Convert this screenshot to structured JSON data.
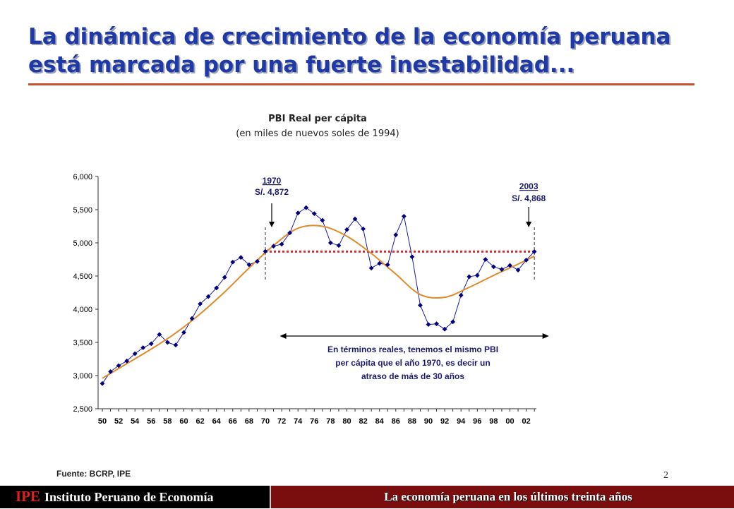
{
  "slide": {
    "title_line1": "La dinámica de crecimiento de la economía peruana",
    "title_line2": "está marcada por una fuerte inestabilidad...",
    "source": "Fuente: BCRP, IPE",
    "page_number": "2"
  },
  "footer": {
    "logo_mark": "IPE",
    "logo_name": "Instituto Peruano de Economía",
    "tagline": "La economía peruana en los últimos treinta años"
  },
  "chart_data": {
    "type": "line",
    "title": "PBI Real per cápita",
    "subtitle": "(en miles de nuevos soles de 1994)",
    "xlabel": "",
    "ylabel": "",
    "ylim": [
      2500,
      6000
    ],
    "yticks": [
      2500,
      3000,
      3500,
      4000,
      4500,
      5000,
      5500,
      6000
    ],
    "ytick_labels": [
      "2,500",
      "3,000",
      "3,500",
      "4,000",
      "4,500",
      "5,000",
      "5,500",
      "6,000"
    ],
    "xlim": [
      1950,
      2003
    ],
    "xticks": [
      1950,
      1952,
      1954,
      1956,
      1958,
      1960,
      1962,
      1964,
      1966,
      1968,
      1970,
      1972,
      1974,
      1976,
      1978,
      1980,
      1982,
      1984,
      1986,
      1988,
      1990,
      1992,
      1994,
      1996,
      1998,
      2000,
      2002
    ],
    "xtick_labels": [
      "50",
      "52",
      "54",
      "56",
      "58",
      "60",
      "62",
      "64",
      "66",
      "68",
      "70",
      "72",
      "74",
      "76",
      "78",
      "80",
      "82",
      "84",
      "86",
      "88",
      "90",
      "92",
      "94",
      "96",
      "98",
      "00",
      "02"
    ],
    "grid": false,
    "legend": "none",
    "colors": {
      "actual_line": "#1a1aa6",
      "marker": "#000080",
      "trend_line": "#e08a2a",
      "reference_line": "#d03030",
      "annotation": "#1a1a70"
    },
    "series": [
      {
        "x": [
          1950,
          1951,
          1952,
          1953,
          1954,
          1955,
          1956,
          1957,
          1958,
          1959,
          1960,
          1961,
          1962,
          1963,
          1964,
          1965,
          1966,
          1967,
          1968,
          1969,
          1970,
          1971,
          1972,
          1973,
          1974,
          1975,
          1976,
          1977,
          1978,
          1979,
          1980,
          1981,
          1982,
          1983,
          1984,
          1985,
          1986,
          1987,
          1988,
          1989,
          1990,
          1991,
          1992,
          1993,
          1994,
          1995,
          1996,
          1997,
          1998,
          1999,
          2000,
          2001,
          2002,
          2003
        ],
        "values": [
          2880,
          3060,
          3150,
          3220,
          3330,
          3420,
          3480,
          3620,
          3500,
          3460,
          3650,
          3860,
          4080,
          4190,
          4320,
          4480,
          4710,
          4780,
          4670,
          4720,
          4872,
          4950,
          4980,
          5150,
          5450,
          5530,
          5440,
          5340,
          5000,
          4960,
          5200,
          5360,
          5210,
          4620,
          4690,
          4670,
          5120,
          5400,
          4790,
          4060,
          3770,
          3780,
          3700,
          3810,
          4210,
          4490,
          4510,
          4750,
          4640,
          4600,
          4660,
          4590,
          4740,
          4868
        ]
      },
      {
        "x": [
          1950,
          1953,
          1956,
          1959,
          1962,
          1965,
          1968,
          1971,
          1974,
          1977,
          1980,
          1983,
          1986,
          1989,
          1992,
          1995,
          1998,
          2001,
          2003
        ],
        "values": [
          2960,
          3180,
          3400,
          3640,
          3930,
          4260,
          4620,
          4960,
          5220,
          5250,
          5100,
          4840,
          4530,
          4220,
          4180,
          4330,
          4510,
          4680,
          4800
        ]
      }
    ],
    "reference_line": {
      "x": [
        1970,
        2003
      ],
      "value": 4868
    },
    "markers": [
      1970,
      2003
    ],
    "annotations": {
      "start_year": "1970",
      "start_value": "S/. 4,872",
      "end_year": "2003",
      "end_value": "S/. 4,868",
      "note_lines": [
        "En términos reales, tenemos el mismo PBI",
        "per cápita que el año 1970, es decir un",
        "atraso de más de 30 años"
      ],
      "span": [
        1971,
        2004
      ]
    }
  }
}
